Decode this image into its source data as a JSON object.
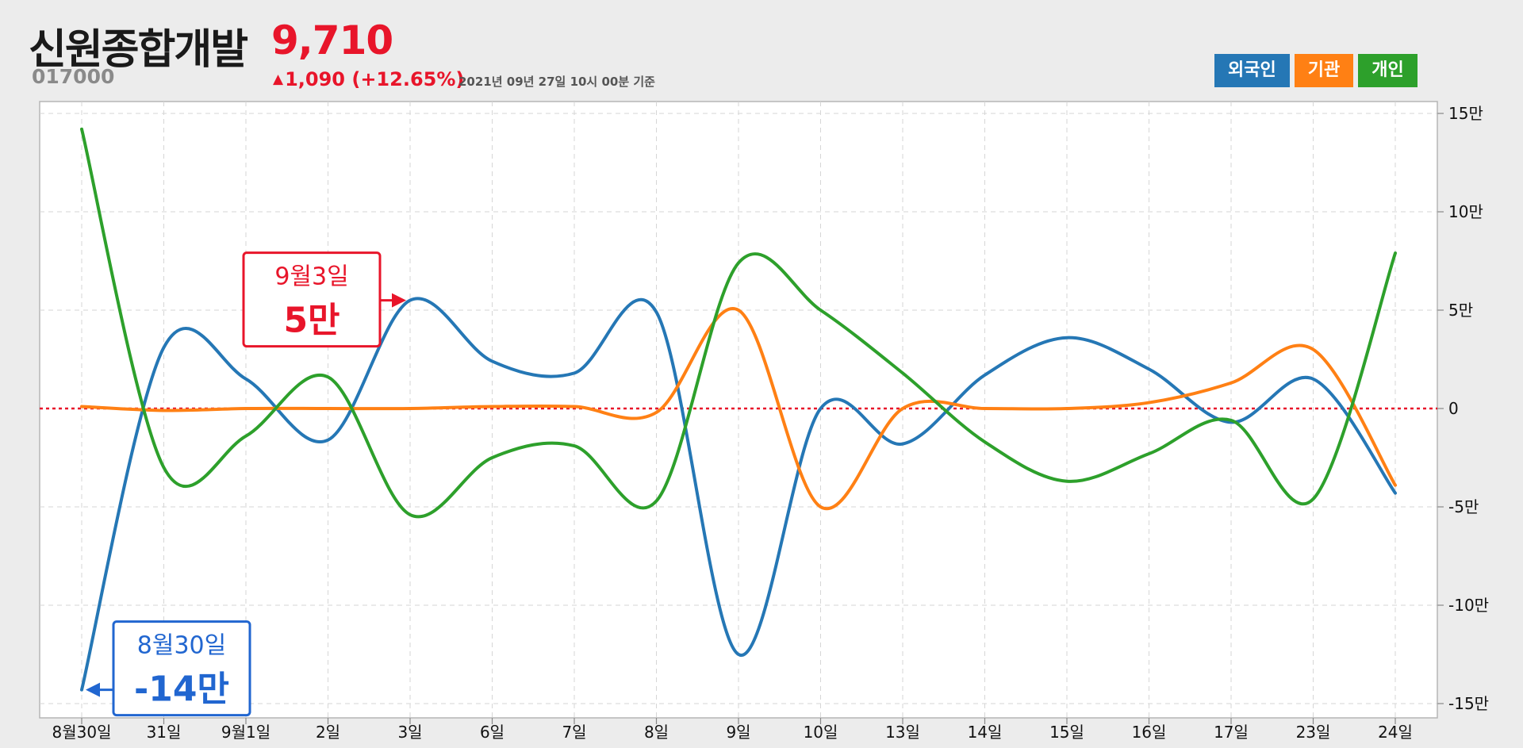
{
  "header": {
    "name": "신원종합개발",
    "code": "017000",
    "price": "9,710",
    "change_arrow": "▲",
    "change": "1,090 (+12.65%)",
    "asof": "2021년 09년 27일 10시 00분 기준"
  },
  "legend": [
    {
      "label": "외국인",
      "color": "#2577b5"
    },
    {
      "label": "기관",
      "color": "#ff8014"
    },
    {
      "label": "개인",
      "color": "#2da02b"
    }
  ],
  "chart_data": {
    "type": "line",
    "categories": [
      "8월30일",
      "31일",
      "9월1일",
      "2일",
      "3일",
      "6일",
      "7일",
      "8일",
      "9일",
      "10일",
      "13일",
      "14일",
      "15일",
      "16일",
      "17일",
      "23일",
      "24일"
    ],
    "y_ticks": [
      "15만",
      "10만",
      "5만",
      "0",
      "-5만",
      "-10만",
      "-15만"
    ],
    "ylim": [
      -150000,
      150000
    ],
    "grid": true,
    "zero_line": true,
    "series": [
      {
        "name": "외국인",
        "color": "#2577b5",
        "values": [
          -143000,
          31000,
          15000,
          -16000,
          55000,
          24000,
          18000,
          49000,
          -125000,
          0,
          -18000,
          17000,
          36000,
          20000,
          -7000,
          15000,
          -43000
        ]
      },
      {
        "name": "기관",
        "color": "#ff8014",
        "values": [
          1000,
          -1000,
          0,
          0,
          0,
          1000,
          1000,
          -2000,
          50000,
          -50000,
          0,
          0,
          0,
          3000,
          13000,
          30000,
          -39000
        ]
      },
      {
        "name": "개인",
        "color": "#2da02b",
        "values": [
          142000,
          -30000,
          -14000,
          16000,
          -54000,
          -25000,
          -19000,
          -47000,
          74000,
          50000,
          18000,
          -17000,
          -37000,
          -23000,
          -6000,
          -46000,
          79000
        ]
      }
    ],
    "annotations": [
      {
        "date_label": "9월3일",
        "value_label": "5만",
        "color": "#e8152a",
        "placement": "left-of-point",
        "target_index": 4,
        "target_series": 0
      },
      {
        "date_label": "8월30일",
        "value_label": "-14만",
        "color": "#2166d0",
        "placement": "right-of-point",
        "target_index": 0,
        "target_series": 0
      }
    ]
  }
}
